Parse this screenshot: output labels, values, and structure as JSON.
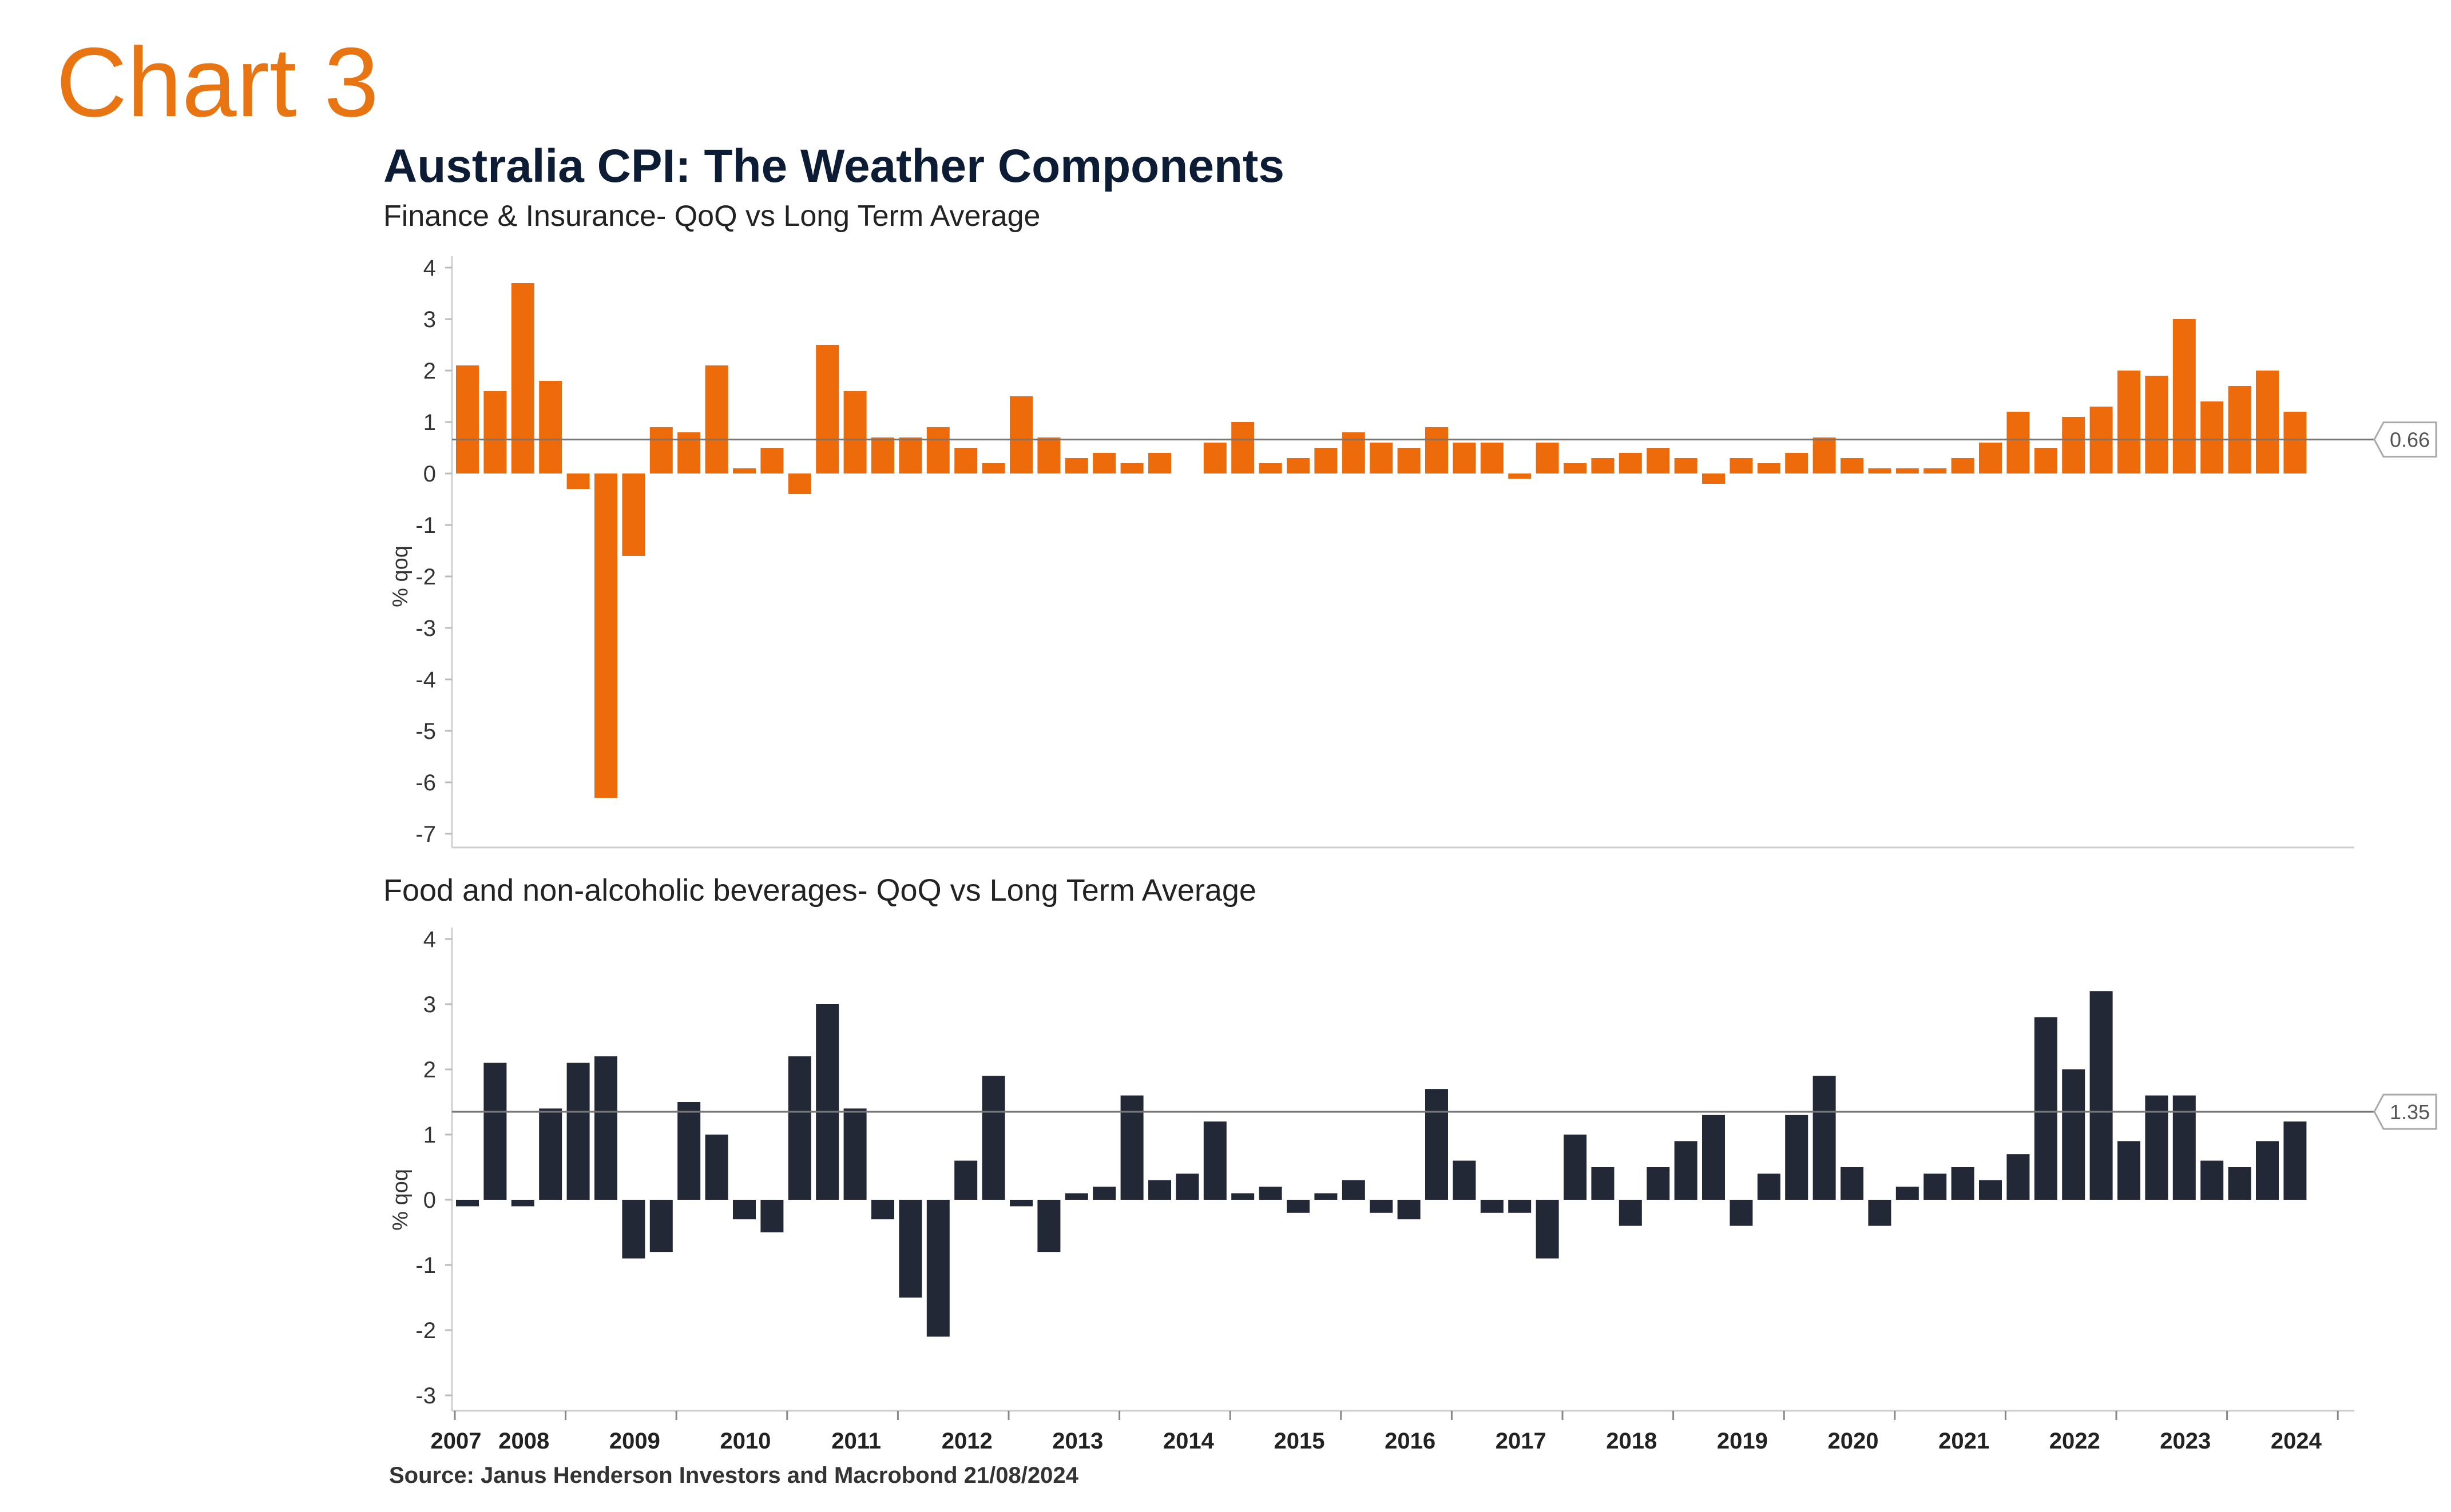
{
  "page_label": "Chart 3",
  "title": "Australia CPI: The Weather Components",
  "source": "Source: Janus Henderson Investors and Macrobond  21/08/2024",
  "colors": {
    "finance": "#EE6B0B",
    "food": "#232836",
    "label": "#E87511",
    "title": "#0C1C35"
  },
  "chart_data": [
    {
      "type": "bar",
      "subtitle": "Finance & Insurance- QoQ vs Long Term Average",
      "ylabel": "% qoq",
      "ylim": [
        -7,
        4
      ],
      "yticks": [
        4,
        3,
        2,
        1,
        0,
        -1,
        -2,
        -3,
        -4,
        -5,
        -6,
        -7
      ],
      "x_start": "2007Q1",
      "frequency": "quarterly",
      "average": 0.66,
      "average_label": "0.66",
      "color": "#EE6B0B",
      "values": [
        2.1,
        1.6,
        3.7,
        1.8,
        -0.3,
        -6.3,
        -1.6,
        0.9,
        0.8,
        2.1,
        0.1,
        0.5,
        -0.4,
        2.5,
        1.6,
        0.7,
        0.7,
        0.9,
        0.5,
        0.2,
        1.5,
        0.7,
        0.3,
        0.4,
        0.2,
        0.4,
        0.0,
        0.6,
        1.0,
        0.2,
        0.3,
        0.5,
        0.8,
        0.6,
        0.5,
        0.9,
        0.6,
        0.6,
        -0.1,
        0.6,
        0.2,
        0.3,
        0.4,
        0.5,
        0.3,
        -0.2,
        0.3,
        0.2,
        0.4,
        0.7,
        0.3,
        0.1,
        0.1,
        0.1,
        0.3,
        0.6,
        1.2,
        0.5,
        1.1,
        1.3,
        2.0,
        1.9,
        3.0,
        1.4,
        1.7,
        2.0,
        1.2
      ]
    },
    {
      "type": "bar",
      "subtitle": "Food and non-alcoholic beverages- QoQ vs Long Term Average",
      "ylabel": "% qoq",
      "ylim": [
        -3,
        4
      ],
      "yticks": [
        4,
        3,
        2,
        1,
        0,
        -1,
        -2,
        -3
      ],
      "x_start": "2007Q1",
      "frequency": "quarterly",
      "average": 1.35,
      "average_label": "1.35",
      "color": "#232836",
      "values": [
        -0.1,
        2.1,
        -0.1,
        1.4,
        2.1,
        2.2,
        -0.9,
        -0.8,
        1.5,
        1.0,
        -0.3,
        -0.5,
        2.2,
        3.0,
        1.4,
        -0.3,
        -1.5,
        -2.1,
        0.6,
        1.9,
        -0.1,
        -0.8,
        0.1,
        0.2,
        1.6,
        0.3,
        0.4,
        1.2,
        0.1,
        0.2,
        -0.2,
        0.1,
        0.3,
        -0.2,
        -0.3,
        1.7,
        0.6,
        -0.2,
        -0.2,
        -0.9,
        1.0,
        0.5,
        -0.4,
        0.5,
        0.9,
        1.3,
        -0.4,
        0.4,
        1.3,
        1.9,
        0.5,
        -0.4,
        0.2,
        0.4,
        0.5,
        0.3,
        0.7,
        2.8,
        2.0,
        3.2,
        0.9,
        1.6,
        1.6,
        0.6,
        0.5,
        0.9,
        1.2
      ],
      "xticks": [
        "2007",
        "2008",
        "2009",
        "2010",
        "2011",
        "2012",
        "2013",
        "2014",
        "2015",
        "2016",
        "2017",
        "2018",
        "2019",
        "2020",
        "2021",
        "2022",
        "2023",
        "2024"
      ]
    }
  ]
}
